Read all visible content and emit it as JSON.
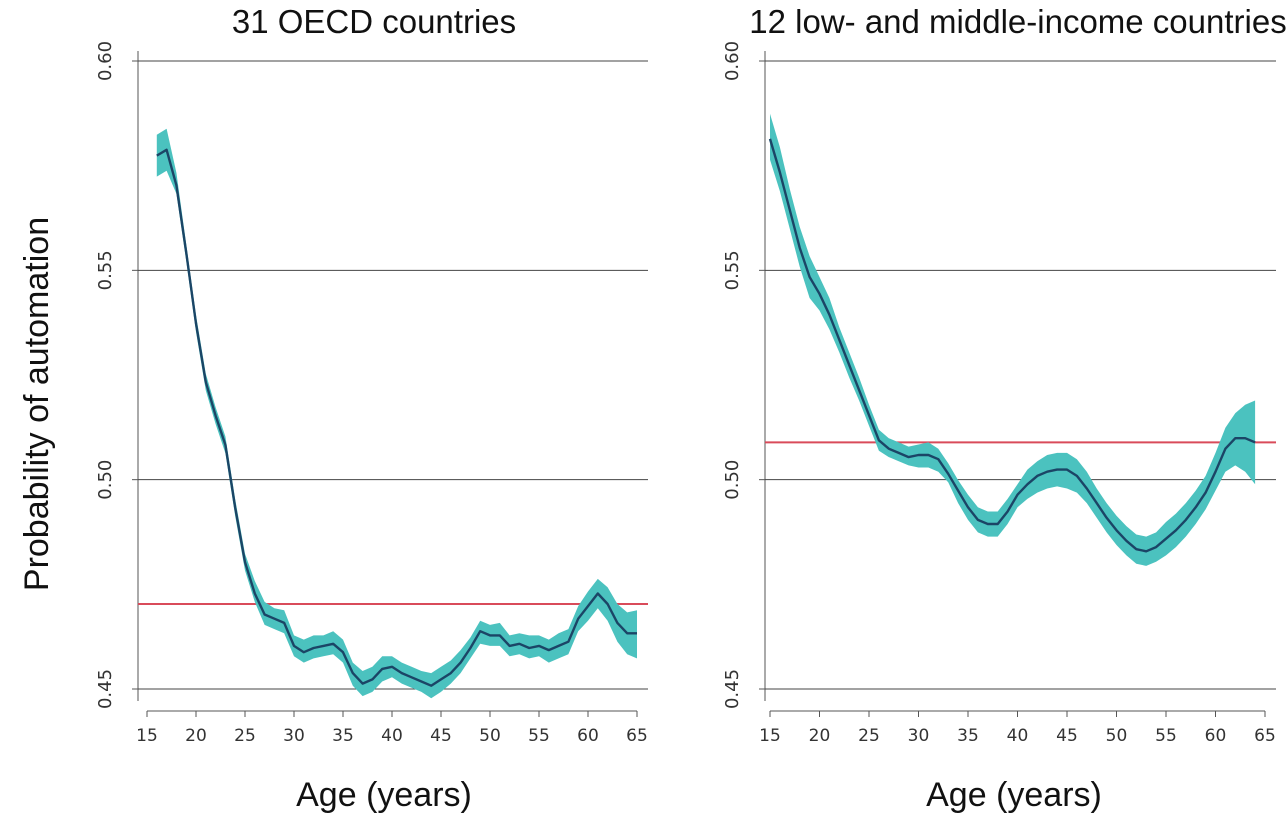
{
  "shared": {
    "ylabel": "Probability of automation",
    "xlabel": "Age (years)"
  },
  "chart_data": [
    {
      "type": "line",
      "title": "31 OECD countries",
      "xlabel": "Age (years)",
      "ylabel": "Probability of automation",
      "xlim": [
        15,
        65
      ],
      "ylim": [
        0.45,
        0.6
      ],
      "xticks": [
        15,
        20,
        25,
        30,
        35,
        40,
        45,
        50,
        55,
        60,
        65
      ],
      "yticks": [
        0.45,
        0.5,
        0.55,
        0.6
      ],
      "grid": "horizontal",
      "series": [
        {
          "style": "line-with-confidence-band",
          "x": [
            16,
            17,
            18,
            19,
            20,
            21,
            22,
            23,
            24,
            25,
            26,
            27,
            28,
            29,
            30,
            31,
            32,
            33,
            34,
            35,
            36,
            37,
            38,
            39,
            40,
            41,
            42,
            43,
            44,
            45,
            46,
            47,
            48,
            49,
            50,
            51,
            52,
            53,
            54,
            55,
            56,
            57,
            58,
            59,
            60,
            61,
            62,
            63,
            64,
            65
          ],
          "y": [
            0.5774,
            0.5788,
            0.5703,
            0.5543,
            0.5373,
            0.5233,
            0.5153,
            0.5083,
            0.4933,
            0.4803,
            0.4728,
            0.4678,
            0.4668,
            0.4658,
            0.4603,
            0.4588,
            0.4598,
            0.4603,
            0.4608,
            0.4588,
            0.4538,
            0.4513,
            0.4523,
            0.4548,
            0.4553,
            0.4538,
            0.4528,
            0.4518,
            0.4508,
            0.4523,
            0.4538,
            0.4563,
            0.4598,
            0.4638,
            0.4628,
            0.4628,
            0.4603,
            0.4608,
            0.4598,
            0.4603,
            0.4593,
            0.4603,
            0.4613,
            0.4668,
            0.4698,
            0.4728,
            0.4703,
            0.4658,
            0.4633,
            0.4633
          ],
          "lower": [
            0.5724,
            0.5738,
            0.5683,
            0.5523,
            0.5353,
            0.5213,
            0.5133,
            0.5063,
            0.4913,
            0.4783,
            0.4708,
            0.4653,
            0.4643,
            0.4633,
            0.4578,
            0.4563,
            0.4573,
            0.4578,
            0.4583,
            0.4563,
            0.4508,
            0.4483,
            0.4493,
            0.4518,
            0.4528,
            0.4513,
            0.4503,
            0.4493,
            0.4478,
            0.4493,
            0.4513,
            0.4538,
            0.4573,
            0.4608,
            0.4603,
            0.4603,
            0.4578,
            0.4583,
            0.4573,
            0.4578,
            0.4563,
            0.4573,
            0.4583,
            0.4638,
            0.4663,
            0.4693,
            0.4663,
            0.4613,
            0.4583,
            0.4573
          ],
          "upper": [
            0.5824,
            0.5838,
            0.5733,
            0.5563,
            0.5393,
            0.5253,
            0.5173,
            0.5103,
            0.4953,
            0.4823,
            0.4758,
            0.4708,
            0.4693,
            0.4688,
            0.4628,
            0.4618,
            0.4628,
            0.4628,
            0.4638,
            0.4618,
            0.4563,
            0.4543,
            0.4553,
            0.4578,
            0.4578,
            0.4563,
            0.4553,
            0.4543,
            0.4538,
            0.4553,
            0.4568,
            0.4593,
            0.4623,
            0.4663,
            0.4653,
            0.4658,
            0.4628,
            0.4633,
            0.4628,
            0.4628,
            0.4618,
            0.4633,
            0.4643,
            0.4698,
            0.4733,
            0.4763,
            0.4743,
            0.4703,
            0.4683,
            0.4688
          ],
          "line_color": "#1b4566",
          "band_color": "#4bc2bf"
        }
      ],
      "reference_line": {
        "value": 0.4703,
        "color": "#d94b5a"
      }
    },
    {
      "type": "line",
      "title": "12 low- and middle-income countries",
      "xlabel": "Age (years)",
      "ylabel": "",
      "xlim": [
        15,
        65
      ],
      "ylim": [
        0.45,
        0.6
      ],
      "xticks": [
        15,
        20,
        25,
        30,
        35,
        40,
        45,
        50,
        55,
        60,
        65
      ],
      "yticks": [
        0.45,
        0.5,
        0.55,
        0.6
      ],
      "grid": "horizontal",
      "series": [
        {
          "style": "line-with-confidence-band",
          "x": [
            15,
            16,
            17,
            18,
            19,
            20,
            21,
            22,
            23,
            24,
            25,
            26,
            27,
            28,
            29,
            30,
            31,
            32,
            33,
            34,
            35,
            36,
            37,
            38,
            39,
            40,
            41,
            42,
            43,
            44,
            45,
            46,
            47,
            48,
            49,
            50,
            51,
            52,
            53,
            54,
            55,
            56,
            57,
            58,
            59,
            60,
            61,
            62,
            63,
            64
          ],
          "y": [
            0.5814,
            0.5734,
            0.5644,
            0.5554,
            0.5484,
            0.5444,
            0.5394,
            0.5334,
            0.5274,
            0.5214,
            0.5154,
            0.5094,
            0.5074,
            0.5064,
            0.5054,
            0.5059,
            0.5059,
            0.5049,
            0.5014,
            0.4974,
            0.4934,
            0.4904,
            0.4894,
            0.4894,
            0.4924,
            0.4964,
            0.4989,
            0.5009,
            0.5019,
            0.5024,
            0.5024,
            0.5009,
            0.4979,
            0.4944,
            0.4909,
            0.4879,
            0.4854,
            0.4834,
            0.4829,
            0.4839,
            0.4859,
            0.4879,
            0.4904,
            0.4934,
            0.4969,
            0.5019,
            0.5074,
            0.5099,
            0.5099,
            0.5089
          ],
          "lower": [
            0.5764,
            0.5689,
            0.5599,
            0.5509,
            0.5434,
            0.5404,
            0.5359,
            0.5304,
            0.5244,
            0.5189,
            0.5129,
            0.5069,
            0.5054,
            0.5044,
            0.5034,
            0.5029,
            0.5029,
            0.5019,
            0.4994,
            0.4944,
            0.4904,
            0.4874,
            0.4864,
            0.4864,
            0.4894,
            0.4934,
            0.4954,
            0.4969,
            0.4979,
            0.4984,
            0.4979,
            0.4969,
            0.4944,
            0.4909,
            0.4874,
            0.4844,
            0.4819,
            0.4799,
            0.4794,
            0.4804,
            0.4819,
            0.4839,
            0.4864,
            0.4894,
            0.4929,
            0.4974,
            0.5019,
            0.5034,
            0.5019,
            0.4989
          ],
          "upper": [
            0.5874,
            0.5794,
            0.5694,
            0.5604,
            0.5534,
            0.5484,
            0.5434,
            0.5364,
            0.5304,
            0.5244,
            0.5179,
            0.5119,
            0.5099,
            0.5089,
            0.5079,
            0.5084,
            0.5089,
            0.5074,
            0.5039,
            0.4999,
            0.4964,
            0.4934,
            0.4924,
            0.4924,
            0.4954,
            0.4989,
            0.5024,
            0.5044,
            0.5059,
            0.5064,
            0.5064,
            0.5049,
            0.5019,
            0.4979,
            0.4944,
            0.4914,
            0.4889,
            0.4869,
            0.4864,
            0.4874,
            0.4899,
            0.4919,
            0.4944,
            0.4974,
            0.5009,
            0.5064,
            0.5124,
            0.5159,
            0.5179,
            0.5189
          ],
          "line_color": "#1b4566",
          "band_color": "#4bc2bf"
        }
      ],
      "reference_line": {
        "value": 0.5089,
        "color": "#d94b5a"
      }
    }
  ]
}
